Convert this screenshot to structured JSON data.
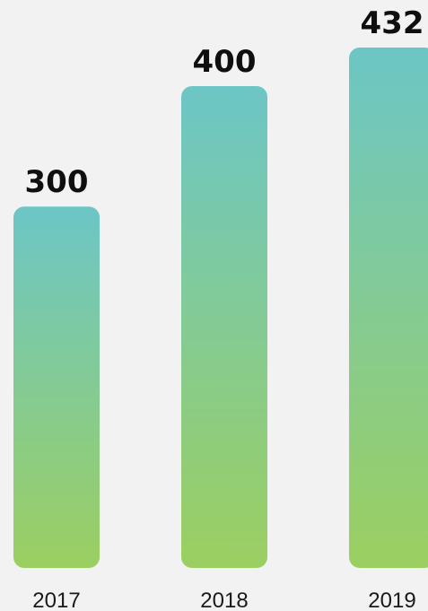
{
  "chart_data": {
    "type": "bar",
    "categories": [
      "2017",
      "2018",
      "2019"
    ],
    "values": [
      300,
      400,
      432
    ],
    "title": "",
    "xlabel": "",
    "ylabel": "",
    "ylim": [
      0,
      432
    ],
    "grid": false,
    "colors": {
      "bar_top": "#6cc6c6",
      "bar_bottom": "#9ccf61",
      "background": "#f2f2f2",
      "value_text": "#0f0f0f",
      "tick_text": "#1a1a1a"
    }
  }
}
